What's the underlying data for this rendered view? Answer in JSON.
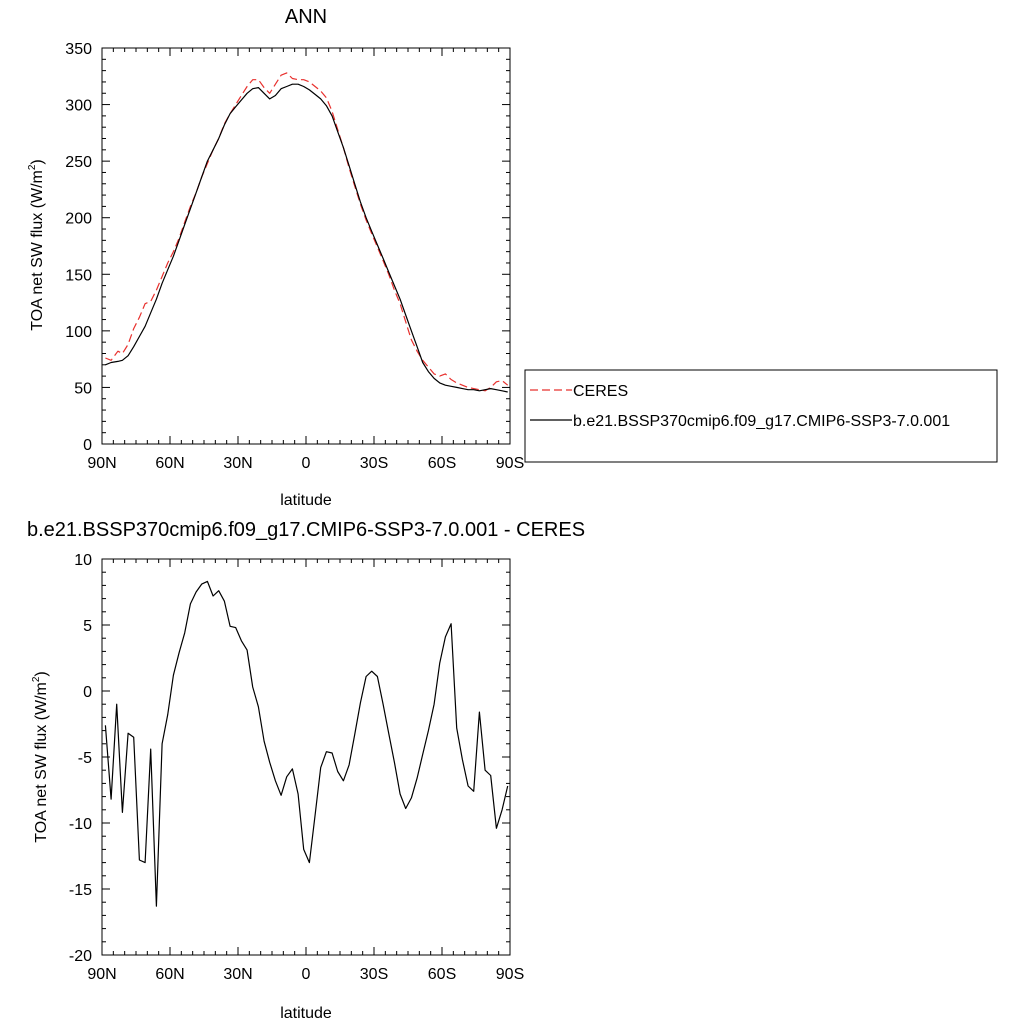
{
  "chart_data": [
    {
      "type": "line",
      "title": "ANN",
      "xlabel": "latitude",
      "ylabel": "TOA net SW flux (W/m",
      "ylabel_sup": "2",
      "ylabel_tail": ")",
      "xlim": [
        90,
        -90
      ],
      "ylim": [
        0,
        350
      ],
      "xticks": [
        90,
        60,
        30,
        0,
        -30,
        -60,
        -90
      ],
      "xtick_labels": [
        "90N",
        "60N",
        "30N",
        "0",
        "30S",
        "60S",
        "90S"
      ],
      "yticks": [
        0,
        50,
        100,
        150,
        200,
        250,
        300,
        350
      ],
      "ytick_labels": [
        "0",
        "50",
        "100",
        "150",
        "200",
        "250",
        "300",
        "350"
      ],
      "legend": "outside-right",
      "series": [
        {
          "name": "CERES",
          "color": "#e8312e",
          "dash": "dashed",
          "x": [
            88.5,
            86,
            83,
            81,
            78.5,
            76,
            73.5,
            71,
            68.5,
            66,
            63.5,
            61,
            58.5,
            56,
            53.5,
            51,
            48.5,
            46,
            43.5,
            41,
            38.5,
            36,
            33.5,
            31,
            28.5,
            26,
            23.5,
            21,
            18.5,
            16,
            13.5,
            11,
            8.5,
            6,
            3.5,
            1,
            -1.5,
            -4,
            -6.5,
            -9,
            -11.5,
            -14,
            -16.5,
            -19,
            -21.5,
            -24,
            -26.5,
            -29,
            -31.5,
            -34,
            -36.5,
            -39,
            -41.5,
            -44,
            -46.5,
            -49,
            -51.5,
            -54,
            -56.5,
            -59,
            -61.5,
            -64,
            -66.5,
            -69,
            -71.5,
            -74,
            -76.5,
            -79,
            -81.5,
            -84,
            -86.5,
            -89
          ],
          "y": [
            76,
            74,
            82,
            80,
            88,
            102,
            112,
            124,
            126,
            136,
            148,
            160,
            170,
            182,
            196,
            210,
            222,
            236,
            248,
            260,
            270,
            283,
            292,
            300,
            308,
            316,
            322,
            322,
            315,
            310,
            318,
            326,
            328,
            323,
            322,
            322,
            320,
            316,
            312,
            306,
            294,
            278,
            262,
            244,
            228,
            212,
            198,
            186,
            174,
            162,
            150,
            136,
            124,
            108,
            92,
            82,
            74,
            68,
            62,
            60,
            62,
            57,
            54,
            52,
            50,
            49,
            48,
            47,
            50,
            55,
            56,
            52
          ]
        },
        {
          "name": "b.e21.BSSP370cmip6.f09_g17.CMIP6-SSP3-7.0.001",
          "color": "#000000",
          "dash": "solid",
          "x": [
            88.5,
            86,
            83,
            81,
            78.5,
            76,
            73.5,
            71,
            68.5,
            66,
            63.5,
            61,
            58.5,
            56,
            53.5,
            51,
            48.5,
            46,
            43.5,
            41,
            38.5,
            36,
            33.5,
            31,
            28.5,
            26,
            23.5,
            21,
            18.5,
            16,
            13.5,
            11,
            8.5,
            6,
            3.5,
            1,
            -1.5,
            -4,
            -6.5,
            -9,
            -11.5,
            -14,
            -16.5,
            -19,
            -21.5,
            -24,
            -26.5,
            -29,
            -31.5,
            -34,
            -36.5,
            -39,
            -41.5,
            -44,
            -46.5,
            -49,
            -51.5,
            -54,
            -56.5,
            -59,
            -61.5,
            -64,
            -66.5,
            -69,
            -71.5,
            -74,
            -76.5,
            -79,
            -81.5,
            -84,
            -86.5,
            -89
          ],
          "y": [
            70,
            72,
            73,
            74,
            78,
            86,
            95,
            104,
            116,
            128,
            142,
            154,
            166,
            180,
            194,
            208,
            222,
            236,
            250,
            260,
            270,
            282,
            292,
            298,
            304,
            310,
            314,
            315,
            310,
            305,
            308,
            314,
            316,
            318,
            318,
            316,
            313,
            309,
            305,
            299,
            290,
            276,
            262,
            246,
            230,
            214,
            200,
            188,
            176,
            164,
            152,
            140,
            128,
            114,
            100,
            86,
            72,
            64,
            58,
            54,
            52,
            51,
            50,
            49,
            48,
            48,
            47,
            48,
            49,
            48,
            47,
            46
          ]
        }
      ]
    },
    {
      "type": "line",
      "title": "b.e21.BSSP370cmip6.f09_g17.CMIP6-SSP3-7.0.001 - CERES",
      "xlabel": "latitude",
      "ylabel": "TOA net SW flux (W/m",
      "ylabel_sup": "2",
      "ylabel_tail": ")",
      "xlim": [
        90,
        -90
      ],
      "ylim": [
        -20,
        10
      ],
      "xticks": [
        90,
        60,
        30,
        0,
        -30,
        -60,
        -90
      ],
      "xtick_labels": [
        "90N",
        "60N",
        "30N",
        "0",
        "30S",
        "60S",
        "90S"
      ],
      "yticks": [
        -20,
        -15,
        -10,
        -5,
        0,
        5,
        10
      ],
      "ytick_labels": [
        "-20",
        "-15",
        "-10",
        "-5",
        "0",
        "5",
        "10"
      ],
      "series": [
        {
          "name": "b.e21.BSSP370cmip6.f09_g17.CMIP6-SSP3-7.0.001 - CERES",
          "color": "#000000",
          "dash": "solid",
          "x": [
            88.5,
            86,
            83.5,
            81,
            78.5,
            76,
            73.5,
            71,
            68.5,
            66,
            63.5,
            61,
            58.5,
            56,
            53.5,
            51,
            48.5,
            46,
            43.5,
            41,
            38.5,
            36,
            33.5,
            31,
            28.5,
            26,
            23.5,
            21,
            18.5,
            16,
            13.5,
            11,
            8.5,
            6,
            3.5,
            1,
            -1.5,
            -4,
            -6.5,
            -9,
            -11.5,
            -14,
            -16.5,
            -19,
            -21.5,
            -24,
            -26.5,
            -29,
            -31.5,
            -34,
            -36.5,
            -39,
            -41.5,
            -44,
            -46.5,
            -49,
            -51.5,
            -54,
            -56.5,
            -59,
            -61.5,
            -64,
            -66.5,
            -69,
            -71.5,
            -74,
            -76.5,
            -79,
            -81.5,
            -84,
            -86.5,
            -89
          ],
          "y": [
            -2.6,
            -8.2,
            -1.0,
            -9.2,
            -3.2,
            -3.5,
            -12.8,
            -13.0,
            -4.4,
            -16.3,
            -4.0,
            -1.8,
            1.2,
            2.9,
            4.4,
            6.6,
            7.5,
            8.1,
            8.3,
            7.2,
            7.6,
            6.8,
            4.9,
            4.8,
            3.8,
            3.1,
            0.3,
            -1.2,
            -3.8,
            -5.4,
            -6.8,
            -7.9,
            -6.5,
            -5.9,
            -7.8,
            -12.0,
            -13.0,
            -9.4,
            -5.8,
            -4.6,
            -4.7,
            -6.1,
            -6.8,
            -5.6,
            -3.3,
            -0.9,
            1.1,
            1.5,
            1.1,
            -1.0,
            -3.2,
            -5.4,
            -7.8,
            -8.9,
            -8.1,
            -6.6,
            -4.8,
            -3.0,
            -1.0,
            2.1,
            4.1,
            5.1,
            -2.8,
            -5.2,
            -7.2,
            -7.6,
            -1.6,
            -6.0,
            -6.4,
            -10.4,
            -9.0,
            -7.2
          ]
        }
      ]
    }
  ]
}
